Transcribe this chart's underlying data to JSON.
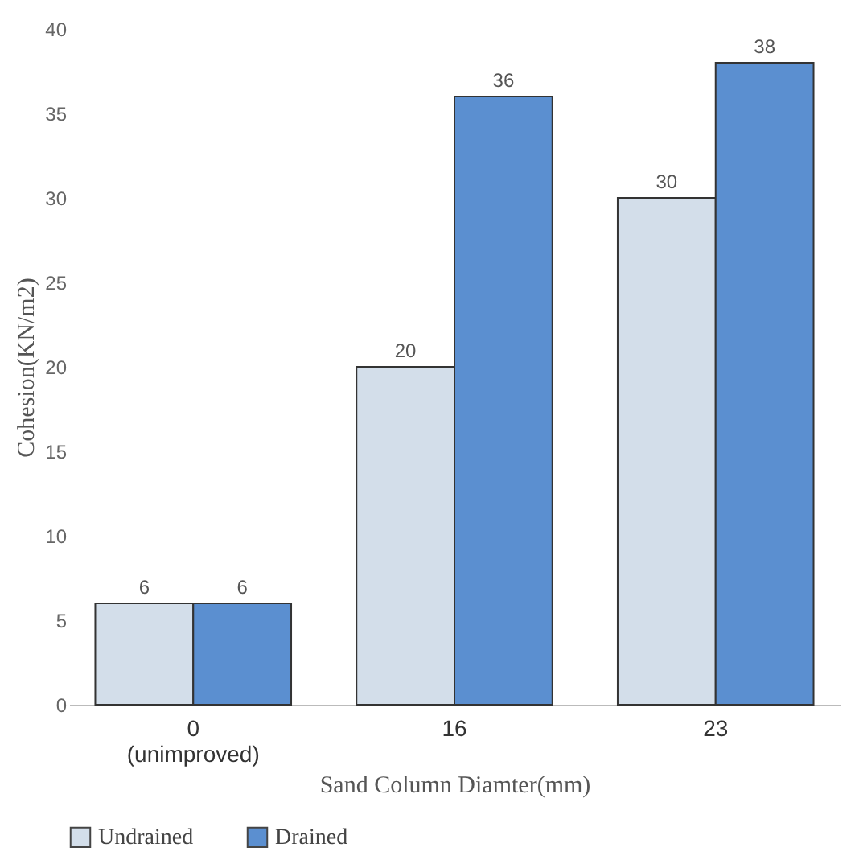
{
  "chart_data": {
    "type": "bar",
    "xlabel": "Sand Column Diamter(mm)",
    "ylabel": "Cohesion(KN/m2)",
    "categories": [
      "0\n(unimproved)",
      "16",
      "23"
    ],
    "series": [
      {
        "name": "Undrained",
        "color": "#d3deea",
        "values": [
          6,
          20,
          30
        ]
      },
      {
        "name": "Drained",
        "color": "#5b8fd0",
        "values": [
          6,
          36,
          38
        ]
      }
    ],
    "ylim": [
      0,
      40
    ],
    "yticks": [
      0,
      5,
      10,
      15,
      20,
      25,
      30,
      35,
      40
    ],
    "grid": false,
    "legend": "bottom",
    "data_labels": true
  }
}
